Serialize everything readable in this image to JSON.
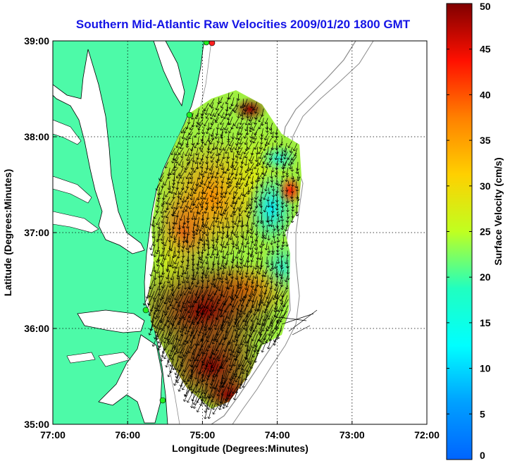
{
  "chart_data": {
    "type": "heatmap",
    "title": "Southern Mid-Atlantic Raw Velocities 2009/01/20 1800 GMT",
    "xlabel": "Longitude (Degrees:Minutes)",
    "ylabel": "Latitude (Degrees:Minutes)",
    "xlim": [
      -77,
      -72
    ],
    "ylim": [
      35,
      39
    ],
    "xticks": [
      {
        "value": -77,
        "label": "77:00"
      },
      {
        "value": -76,
        "label": "76:00"
      },
      {
        "value": -75,
        "label": "75:00"
      },
      {
        "value": -74,
        "label": "74:00"
      },
      {
        "value": -73,
        "label": "73:00"
      },
      {
        "value": -72,
        "label": "72:00"
      }
    ],
    "yticks": [
      {
        "value": 35,
        "label": "35:00"
      },
      {
        "value": 36,
        "label": "36:00"
      },
      {
        "value": 37,
        "label": "37:00"
      },
      {
        "value": 38,
        "label": "38:00"
      },
      {
        "value": 39,
        "label": "39:00"
      }
    ],
    "grid": true,
    "colorbar": {
      "label": "Surface Velocity (cm/s)",
      "range": [
        0,
        50
      ],
      "ticks": [
        "0",
        "5",
        "10",
        "15",
        "20",
        "25",
        "30",
        "35",
        "40",
        "45",
        "50"
      ],
      "colormap": "jet"
    },
    "velocity_field": {
      "description_regions": [
        {
          "lon": [
            -75.6,
            -74.3
          ],
          "lat": [
            35.6,
            36.5
          ],
          "speed_cm_s": 45
        },
        {
          "lon": [
            -75.5,
            -74.8
          ],
          "lat": [
            36.6,
            37.7
          ],
          "speed_cm_s": 33
        },
        {
          "lon": [
            -74.6,
            -73.9
          ],
          "lat": [
            36.8,
            37.6
          ],
          "speed_cm_s": 12
        },
        {
          "lon": [
            -74.9,
            -74.1
          ],
          "lat": [
            37.6,
            38.4
          ],
          "speed_cm_s": 22
        },
        {
          "lon": [
            -74.5,
            -74.3
          ],
          "lat": [
            38.2,
            38.4
          ],
          "speed_cm_s": 44
        },
        {
          "lon": [
            -74.1,
            -73.9
          ],
          "lat": [
            37.2,
            37.6
          ],
          "speed_cm_s": 40
        }
      ]
    }
  },
  "colors": {
    "land": "#4dfaa8",
    "title": "#1414e6",
    "coastline": "#000000",
    "bathymetry": "#8c8c8c",
    "site_marker": "#22ee22",
    "site_marker_alt": "#ff2020"
  }
}
